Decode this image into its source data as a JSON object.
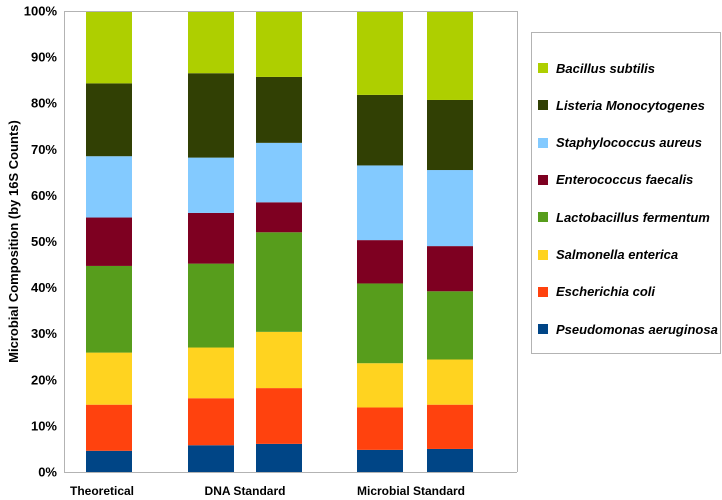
{
  "chart_data": {
    "type": "stacked-bar",
    "ylabel": "Microbial Composition (by 16S Counts)",
    "xlabel": "",
    "ylim": [
      0,
      100
    ],
    "y_ticks": [
      "0%",
      "10%",
      "20%",
      "30%",
      "40%",
      "50%",
      "60%",
      "70%",
      "80%",
      "90%",
      "100%"
    ],
    "grid": false,
    "legend_position": "right",
    "category_labels": [
      "Theoretical",
      "DNA Standard",
      "Microbial Standard"
    ],
    "bars": [
      "Theoretical",
      "DNA Standard 1",
      "DNA Standard 2",
      "Microbial Standard 1",
      "Microbial Standard 2"
    ],
    "series": [
      {
        "name": "Pseudomonas aeruginosa",
        "color": "#004586",
        "values": [
          4.6,
          5.8,
          6.1,
          4.8,
          5.0
        ]
      },
      {
        "name": "Escherichia coli",
        "color": "#ff420e",
        "values": [
          10.0,
          10.2,
          12.1,
          9.2,
          9.6
        ]
      },
      {
        "name": "Salmonella enterica",
        "color": "#ffd320",
        "values": [
          11.3,
          11.0,
          12.2,
          9.6,
          9.8
        ]
      },
      {
        "name": "Lactobacillus fermentum",
        "color": "#579d1c",
        "values": [
          18.8,
          18.2,
          21.6,
          17.3,
          14.8
        ]
      },
      {
        "name": "Enterococcus faecalis",
        "color": "#7e0021",
        "values": [
          10.5,
          11.0,
          6.5,
          9.4,
          9.8
        ]
      },
      {
        "name": "Staphylococcus aureus",
        "color": "#83caff",
        "values": [
          13.3,
          12.0,
          12.9,
          16.2,
          16.5
        ]
      },
      {
        "name": "Listeria Monocytogenes",
        "color": "#314004",
        "values": [
          15.8,
          18.3,
          14.3,
          15.3,
          15.2
        ]
      },
      {
        "name": "Bacillus subtilis",
        "color": "#aecf00",
        "values": [
          15.7,
          13.5,
          14.3,
          18.2,
          19.3
        ]
      }
    ]
  }
}
